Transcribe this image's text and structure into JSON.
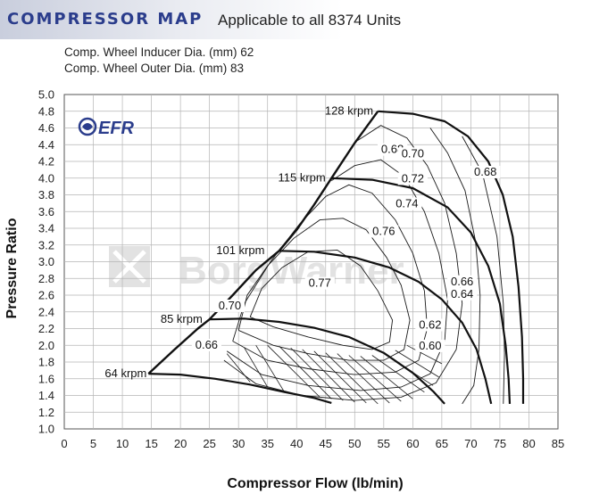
{
  "header": {
    "title": "COMPRESSOR MAP",
    "subtitle": "Applicable to all 8374 Units",
    "spec_inducer": "Comp. Wheel Inducer Dia. (mm) 62",
    "spec_outer": "Comp. Wheel Outer Dia. (mm) 83"
  },
  "brand": {
    "logo_text": "EFR",
    "watermark_text": "BorgWarner",
    "accent": "#2b3d8c"
  },
  "chart_data": {
    "type": "line",
    "xlabel": "Compressor Flow (lb/min)",
    "ylabel": "Pressure Ratio",
    "xlim": [
      0,
      85
    ],
    "ylim": [
      1.0,
      5.0
    ],
    "x_ticks": [
      0,
      5,
      10,
      15,
      20,
      25,
      30,
      35,
      40,
      45,
      50,
      55,
      60,
      65,
      70,
      75,
      80,
      85
    ],
    "y_ticks": [
      "1.0",
      "1.2",
      "1.4",
      "1.6",
      "1.8",
      "2.0",
      "2.2",
      "2.4",
      "2.6",
      "2.8",
      "3.0",
      "3.2",
      "3.4",
      "3.6",
      "3.8",
      "4.0",
      "4.2",
      "4.4",
      "4.6",
      "4.8",
      "5.0"
    ],
    "grid": true,
    "surge_line": [
      [
        14.5,
        1.66
      ],
      [
        19,
        1.95
      ],
      [
        23,
        2.2
      ],
      [
        25,
        2.31
      ],
      [
        29,
        2.6
      ],
      [
        33,
        2.9
      ],
      [
        37,
        3.13
      ],
      [
        40,
        3.38
      ],
      [
        43,
        3.68
      ],
      [
        46,
        4.0
      ],
      [
        50,
        4.42
      ],
      [
        54,
        4.8
      ]
    ],
    "speed_lines": [
      {
        "label": "64 krpm",
        "points": [
          [
            14.5,
            1.66
          ],
          [
            20,
            1.65
          ],
          [
            26,
            1.6
          ],
          [
            32,
            1.53
          ],
          [
            38,
            1.44
          ],
          [
            43,
            1.37
          ],
          [
            46,
            1.31
          ]
        ]
      },
      {
        "label": "85 krpm",
        "points": [
          [
            25,
            2.31
          ],
          [
            31,
            2.32
          ],
          [
            37,
            2.28
          ],
          [
            43,
            2.21
          ],
          [
            49,
            2.1
          ],
          [
            55,
            1.91
          ],
          [
            60,
            1.67
          ],
          [
            63.5,
            1.45
          ],
          [
            65.5,
            1.3
          ]
        ]
      },
      {
        "label": "101 krpm",
        "points": [
          [
            37,
            3.13
          ],
          [
            43,
            3.12
          ],
          [
            50,
            3.05
          ],
          [
            56,
            2.93
          ],
          [
            61,
            2.76
          ],
          [
            65,
            2.55
          ],
          [
            68.5,
            2.27
          ],
          [
            71,
            1.95
          ],
          [
            72.5,
            1.6
          ],
          [
            73.5,
            1.3
          ]
        ]
      },
      {
        "label": "115 krpm",
        "points": [
          [
            46,
            4.0
          ],
          [
            53,
            3.98
          ],
          [
            60,
            3.88
          ],
          [
            66,
            3.65
          ],
          [
            70,
            3.35
          ],
          [
            73,
            2.95
          ],
          [
            75,
            2.5
          ],
          [
            76,
            2.0
          ],
          [
            76.5,
            1.6
          ],
          [
            76.7,
            1.3
          ]
        ]
      },
      {
        "label": "128 krpm",
        "points": [
          [
            54,
            4.8
          ],
          [
            60,
            4.77
          ],
          [
            65.5,
            4.68
          ],
          [
            69.5,
            4.5
          ],
          [
            73,
            4.2
          ],
          [
            75.5,
            3.8
          ],
          [
            77.2,
            3.3
          ],
          [
            78.2,
            2.7
          ],
          [
            78.8,
            2.1
          ],
          [
            79,
            1.6
          ],
          [
            79,
            1.3
          ]
        ]
      }
    ],
    "efficiency_labels": [
      "0.60",
      "0.62",
      "0.64",
      "0.66",
      "0.68",
      "0.68",
      "0.70",
      "0.70",
      "0.72",
      "0.74",
      "0.76",
      "0.77",
      "0.66"
    ],
    "efficiency_islands": [
      {
        "label": "0.77",
        "points": [
          [
            32,
            2.34
          ],
          [
            36,
            2.22
          ],
          [
            42,
            2.1
          ],
          [
            48,
            2.0
          ],
          [
            53,
            1.95
          ],
          [
            56,
            2.04
          ],
          [
            56.5,
            2.3
          ],
          [
            54,
            2.65
          ],
          [
            51,
            2.95
          ],
          [
            47,
            3.14
          ],
          [
            42,
            3.12
          ],
          [
            37.5,
            2.93
          ],
          [
            34,
            2.68
          ],
          [
            32,
            2.34
          ]
        ]
      },
      {
        "label": "0.76",
        "points": [
          [
            30,
            2.18
          ],
          [
            36,
            2.0
          ],
          [
            42,
            1.9
          ],
          [
            49,
            1.82
          ],
          [
            55,
            1.82
          ],
          [
            58.5,
            1.95
          ],
          [
            59.5,
            2.3
          ],
          [
            58,
            2.72
          ],
          [
            55.5,
            3.05
          ],
          [
            52,
            3.38
          ],
          [
            48,
            3.52
          ],
          [
            44,
            3.5
          ],
          [
            39.5,
            3.28
          ],
          [
            35,
            2.95
          ],
          [
            31.5,
            2.6
          ],
          [
            30,
            2.18
          ]
        ]
      },
      {
        "label": "0.74",
        "points": [
          [
            29,
            2.05
          ],
          [
            35,
            1.82
          ],
          [
            42,
            1.72
          ],
          [
            50,
            1.65
          ],
          [
            57,
            1.68
          ],
          [
            61,
            1.82
          ],
          [
            62.5,
            2.2
          ],
          [
            62,
            2.65
          ],
          [
            60,
            3.1
          ],
          [
            57,
            3.5
          ],
          [
            53,
            3.82
          ],
          [
            49,
            3.92
          ],
          [
            45,
            3.78
          ],
          [
            40.5,
            3.45
          ],
          [
            35.5,
            3.0
          ],
          [
            31,
            2.5
          ],
          [
            29,
            2.05
          ]
        ]
      },
      {
        "label": "0.72",
        "points": [
          [
            28,
            1.93
          ],
          [
            34,
            1.65
          ],
          [
            42,
            1.52
          ],
          [
            51,
            1.46
          ],
          [
            58,
            1.5
          ],
          [
            63,
            1.66
          ],
          [
            65.5,
            2.05
          ],
          [
            66,
            2.55
          ],
          [
            64.5,
            3.1
          ],
          [
            62,
            3.6
          ],
          [
            58.5,
            4.02
          ],
          [
            54.5,
            4.22
          ],
          [
            50,
            4.15
          ],
          [
            46,
            3.97
          ]
        ]
      },
      {
        "label": "0.70",
        "points": [
          [
            27.5,
            1.82
          ],
          [
            33,
            1.54
          ],
          [
            41,
            1.4
          ],
          [
            50,
            1.34
          ],
          [
            58,
            1.38
          ],
          [
            64,
            1.55
          ],
          [
            67.5,
            1.95
          ],
          [
            68.5,
            2.5
          ],
          [
            67.5,
            3.1
          ],
          [
            65.5,
            3.7
          ],
          [
            62.5,
            4.15
          ],
          [
            59,
            4.48
          ],
          [
            54.5,
            4.63
          ],
          [
            50.5,
            4.45
          ]
        ]
      },
      {
        "label": "0.68",
        "points": [
          [
            63,
            4.6
          ],
          [
            66,
            4.3
          ],
          [
            69,
            3.85
          ],
          [
            70.8,
            3.25
          ],
          [
            71.6,
            2.6
          ],
          [
            71.4,
            1.95
          ],
          [
            70.5,
            1.52
          ],
          [
            68.5,
            1.3
          ]
        ]
      },
      {
        "label": "0.68",
        "points": [
          [
            68.5,
            4.5
          ],
          [
            72,
            4.06
          ],
          [
            74.5,
            3.3
          ],
          [
            75.6,
            2.5
          ],
          [
            75.8,
            1.9
          ],
          [
            75.6,
            1.3
          ]
        ]
      }
    ]
  }
}
